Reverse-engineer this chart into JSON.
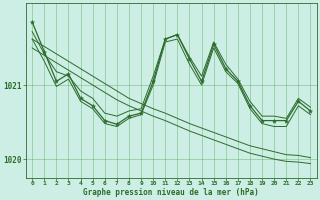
{
  "title": "Graphe pression niveau de la mer (hPa)",
  "background_color": "#cceee4",
  "grid_color": "#55aa55",
  "line_color": "#2d6b2d",
  "x_labels": [
    "0",
    "1",
    "2",
    "3",
    "4",
    "5",
    "6",
    "7",
    "8",
    "9",
    "10",
    "11",
    "12",
    "13",
    "14",
    "15",
    "16",
    "17",
    "18",
    "19",
    "20",
    "21",
    "22",
    "23"
  ],
  "x_values": [
    0,
    1,
    2,
    3,
    4,
    5,
    6,
    7,
    8,
    9,
    10,
    11,
    12,
    13,
    14,
    15,
    16,
    17,
    18,
    19,
    20,
    21,
    22,
    23
  ],
  "main_line": [
    1021.85,
    1021.45,
    1021.05,
    1021.15,
    1020.82,
    1020.72,
    1020.52,
    1020.47,
    1020.58,
    1020.62,
    1021.05,
    1021.62,
    1021.68,
    1021.35,
    1021.05,
    1021.55,
    1021.22,
    1021.05,
    1020.72,
    1020.52,
    1020.52,
    1020.52,
    1020.78,
    1020.65
  ],
  "smooth_upper": [
    1021.72,
    1021.42,
    1021.18,
    1021.12,
    1020.92,
    1020.82,
    1020.62,
    1020.58,
    1020.65,
    1020.68,
    1021.12,
    1021.62,
    1021.68,
    1021.38,
    1021.12,
    1021.58,
    1021.28,
    1021.08,
    1020.78,
    1020.58,
    1020.58,
    1020.55,
    1020.82,
    1020.7
  ],
  "smooth_lower": [
    1021.62,
    1021.32,
    1020.98,
    1021.08,
    1020.78,
    1020.68,
    1020.48,
    1020.44,
    1020.55,
    1020.6,
    1021.0,
    1021.58,
    1021.62,
    1021.28,
    1021.0,
    1021.5,
    1021.18,
    1021.02,
    1020.68,
    1020.48,
    1020.44,
    1020.44,
    1020.72,
    1020.6
  ],
  "trend1": [
    1021.62,
    1021.52,
    1021.42,
    1021.32,
    1021.22,
    1021.12,
    1021.02,
    1020.92,
    1020.82,
    1020.75,
    1020.68,
    1020.62,
    1020.55,
    1020.48,
    1020.42,
    1020.36,
    1020.3,
    1020.24,
    1020.18,
    1020.14,
    1020.1,
    1020.06,
    1020.05,
    1020.02
  ],
  "trend2": [
    1021.5,
    1021.4,
    1021.3,
    1021.2,
    1021.1,
    1021.0,
    1020.9,
    1020.8,
    1020.72,
    1020.65,
    1020.58,
    1020.52,
    1020.45,
    1020.38,
    1020.32,
    1020.26,
    1020.2,
    1020.14,
    1020.08,
    1020.04,
    1020.0,
    1019.97,
    1019.96,
    1019.94
  ],
  "ylim_min": 1019.75,
  "ylim_max": 1022.1,
  "ytick_positions": [
    1020.0,
    1021.0
  ],
  "ytick_labels": [
    "1020",
    "1021"
  ]
}
